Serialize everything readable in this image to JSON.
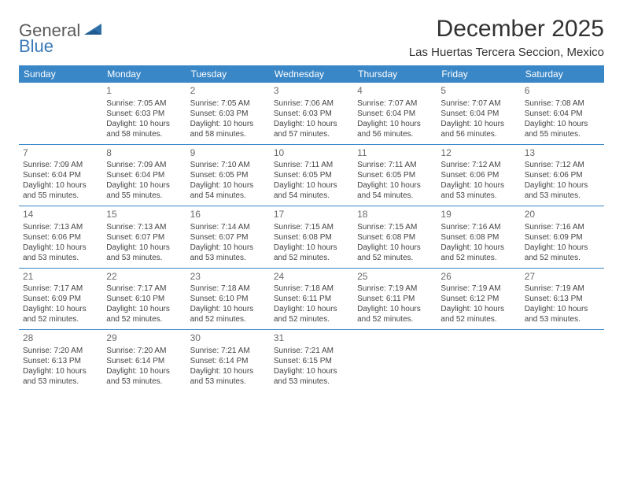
{
  "logo": {
    "part1": "General",
    "part2": "Blue"
  },
  "title": "December 2025",
  "location": "Las Huertas Tercera Seccion, Mexico",
  "colors": {
    "header_bg": "#3a87c7",
    "header_text": "#ffffff",
    "row_border": "#3a87c7",
    "body_text": "#444444",
    "daynum_text": "#6a6a6a",
    "logo_gray": "#5a5a5a",
    "logo_blue": "#3a7ab8",
    "background": "#ffffff"
  },
  "weekdays": [
    "Sunday",
    "Monday",
    "Tuesday",
    "Wednesday",
    "Thursday",
    "Friday",
    "Saturday"
  ],
  "weeks": [
    [
      null,
      {
        "day": "1",
        "sunrise": "Sunrise: 7:05 AM",
        "sunset": "Sunset: 6:03 PM",
        "daylight1": "Daylight: 10 hours",
        "daylight2": "and 58 minutes."
      },
      {
        "day": "2",
        "sunrise": "Sunrise: 7:05 AM",
        "sunset": "Sunset: 6:03 PM",
        "daylight1": "Daylight: 10 hours",
        "daylight2": "and 58 minutes."
      },
      {
        "day": "3",
        "sunrise": "Sunrise: 7:06 AM",
        "sunset": "Sunset: 6:03 PM",
        "daylight1": "Daylight: 10 hours",
        "daylight2": "and 57 minutes."
      },
      {
        "day": "4",
        "sunrise": "Sunrise: 7:07 AM",
        "sunset": "Sunset: 6:04 PM",
        "daylight1": "Daylight: 10 hours",
        "daylight2": "and 56 minutes."
      },
      {
        "day": "5",
        "sunrise": "Sunrise: 7:07 AM",
        "sunset": "Sunset: 6:04 PM",
        "daylight1": "Daylight: 10 hours",
        "daylight2": "and 56 minutes."
      },
      {
        "day": "6",
        "sunrise": "Sunrise: 7:08 AM",
        "sunset": "Sunset: 6:04 PM",
        "daylight1": "Daylight: 10 hours",
        "daylight2": "and 55 minutes."
      }
    ],
    [
      {
        "day": "7",
        "sunrise": "Sunrise: 7:09 AM",
        "sunset": "Sunset: 6:04 PM",
        "daylight1": "Daylight: 10 hours",
        "daylight2": "and 55 minutes."
      },
      {
        "day": "8",
        "sunrise": "Sunrise: 7:09 AM",
        "sunset": "Sunset: 6:04 PM",
        "daylight1": "Daylight: 10 hours",
        "daylight2": "and 55 minutes."
      },
      {
        "day": "9",
        "sunrise": "Sunrise: 7:10 AM",
        "sunset": "Sunset: 6:05 PM",
        "daylight1": "Daylight: 10 hours",
        "daylight2": "and 54 minutes."
      },
      {
        "day": "10",
        "sunrise": "Sunrise: 7:11 AM",
        "sunset": "Sunset: 6:05 PM",
        "daylight1": "Daylight: 10 hours",
        "daylight2": "and 54 minutes."
      },
      {
        "day": "11",
        "sunrise": "Sunrise: 7:11 AM",
        "sunset": "Sunset: 6:05 PM",
        "daylight1": "Daylight: 10 hours",
        "daylight2": "and 54 minutes."
      },
      {
        "day": "12",
        "sunrise": "Sunrise: 7:12 AM",
        "sunset": "Sunset: 6:06 PM",
        "daylight1": "Daylight: 10 hours",
        "daylight2": "and 53 minutes."
      },
      {
        "day": "13",
        "sunrise": "Sunrise: 7:12 AM",
        "sunset": "Sunset: 6:06 PM",
        "daylight1": "Daylight: 10 hours",
        "daylight2": "and 53 minutes."
      }
    ],
    [
      {
        "day": "14",
        "sunrise": "Sunrise: 7:13 AM",
        "sunset": "Sunset: 6:06 PM",
        "daylight1": "Daylight: 10 hours",
        "daylight2": "and 53 minutes."
      },
      {
        "day": "15",
        "sunrise": "Sunrise: 7:13 AM",
        "sunset": "Sunset: 6:07 PM",
        "daylight1": "Daylight: 10 hours",
        "daylight2": "and 53 minutes."
      },
      {
        "day": "16",
        "sunrise": "Sunrise: 7:14 AM",
        "sunset": "Sunset: 6:07 PM",
        "daylight1": "Daylight: 10 hours",
        "daylight2": "and 53 minutes."
      },
      {
        "day": "17",
        "sunrise": "Sunrise: 7:15 AM",
        "sunset": "Sunset: 6:08 PM",
        "daylight1": "Daylight: 10 hours",
        "daylight2": "and 52 minutes."
      },
      {
        "day": "18",
        "sunrise": "Sunrise: 7:15 AM",
        "sunset": "Sunset: 6:08 PM",
        "daylight1": "Daylight: 10 hours",
        "daylight2": "and 52 minutes."
      },
      {
        "day": "19",
        "sunrise": "Sunrise: 7:16 AM",
        "sunset": "Sunset: 6:08 PM",
        "daylight1": "Daylight: 10 hours",
        "daylight2": "and 52 minutes."
      },
      {
        "day": "20",
        "sunrise": "Sunrise: 7:16 AM",
        "sunset": "Sunset: 6:09 PM",
        "daylight1": "Daylight: 10 hours",
        "daylight2": "and 52 minutes."
      }
    ],
    [
      {
        "day": "21",
        "sunrise": "Sunrise: 7:17 AM",
        "sunset": "Sunset: 6:09 PM",
        "daylight1": "Daylight: 10 hours",
        "daylight2": "and 52 minutes."
      },
      {
        "day": "22",
        "sunrise": "Sunrise: 7:17 AM",
        "sunset": "Sunset: 6:10 PM",
        "daylight1": "Daylight: 10 hours",
        "daylight2": "and 52 minutes."
      },
      {
        "day": "23",
        "sunrise": "Sunrise: 7:18 AM",
        "sunset": "Sunset: 6:10 PM",
        "daylight1": "Daylight: 10 hours",
        "daylight2": "and 52 minutes."
      },
      {
        "day": "24",
        "sunrise": "Sunrise: 7:18 AM",
        "sunset": "Sunset: 6:11 PM",
        "daylight1": "Daylight: 10 hours",
        "daylight2": "and 52 minutes."
      },
      {
        "day": "25",
        "sunrise": "Sunrise: 7:19 AM",
        "sunset": "Sunset: 6:11 PM",
        "daylight1": "Daylight: 10 hours",
        "daylight2": "and 52 minutes."
      },
      {
        "day": "26",
        "sunrise": "Sunrise: 7:19 AM",
        "sunset": "Sunset: 6:12 PM",
        "daylight1": "Daylight: 10 hours",
        "daylight2": "and 52 minutes."
      },
      {
        "day": "27",
        "sunrise": "Sunrise: 7:19 AM",
        "sunset": "Sunset: 6:13 PM",
        "daylight1": "Daylight: 10 hours",
        "daylight2": "and 53 minutes."
      }
    ],
    [
      {
        "day": "28",
        "sunrise": "Sunrise: 7:20 AM",
        "sunset": "Sunset: 6:13 PM",
        "daylight1": "Daylight: 10 hours",
        "daylight2": "and 53 minutes."
      },
      {
        "day": "29",
        "sunrise": "Sunrise: 7:20 AM",
        "sunset": "Sunset: 6:14 PM",
        "daylight1": "Daylight: 10 hours",
        "daylight2": "and 53 minutes."
      },
      {
        "day": "30",
        "sunrise": "Sunrise: 7:21 AM",
        "sunset": "Sunset: 6:14 PM",
        "daylight1": "Daylight: 10 hours",
        "daylight2": "and 53 minutes."
      },
      {
        "day": "31",
        "sunrise": "Sunrise: 7:21 AM",
        "sunset": "Sunset: 6:15 PM",
        "daylight1": "Daylight: 10 hours",
        "daylight2": "and 53 minutes."
      },
      null,
      null,
      null
    ]
  ]
}
